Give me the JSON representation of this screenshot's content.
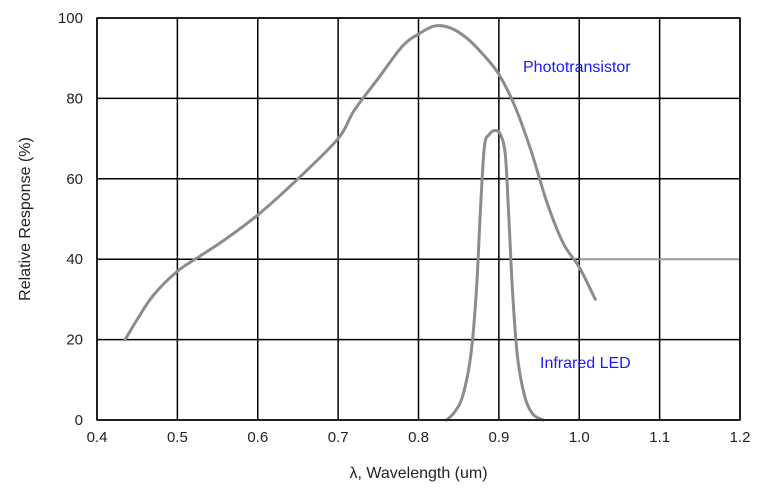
{
  "chart_data": {
    "type": "line",
    "xlabel": "λ, Wavelength (um)",
    "ylabel": "Relative Response (%)",
    "xlim": [
      0.4,
      1.2
    ],
    "ylim": [
      0,
      100
    ],
    "xticks": [
      "0.4",
      "0.5",
      "0.6",
      "0.7",
      "0.8",
      "0.9",
      "1.0",
      "1.1",
      "1.2"
    ],
    "yticks": [
      "0",
      "20",
      "40",
      "60",
      "80",
      "100"
    ],
    "grid": true,
    "series": [
      {
        "name": "Phototransistor",
        "color": "#8c8c8c",
        "points": [
          [
            0.435,
            20
          ],
          [
            0.45,
            25
          ],
          [
            0.47,
            31
          ],
          [
            0.5,
            37
          ],
          [
            0.53,
            41
          ],
          [
            0.56,
            45
          ],
          [
            0.6,
            51
          ],
          [
            0.65,
            60
          ],
          [
            0.7,
            70
          ],
          [
            0.72,
            77
          ],
          [
            0.75,
            85
          ],
          [
            0.78,
            93
          ],
          [
            0.8,
            96
          ],
          [
            0.82,
            98
          ],
          [
            0.84,
            97.5
          ],
          [
            0.86,
            95
          ],
          [
            0.88,
            91
          ],
          [
            0.9,
            86
          ],
          [
            0.92,
            78
          ],
          [
            0.94,
            67
          ],
          [
            0.96,
            54
          ],
          [
            0.98,
            44
          ],
          [
            1.0,
            38
          ],
          [
            1.02,
            30
          ]
        ]
      },
      {
        "name": "Infrared LED",
        "color": "#8c8c8c",
        "points": [
          [
            0.835,
            0
          ],
          [
            0.845,
            2
          ],
          [
            0.855,
            6
          ],
          [
            0.865,
            16
          ],
          [
            0.872,
            32
          ],
          [
            0.877,
            52
          ],
          [
            0.882,
            68
          ],
          [
            0.888,
            71
          ],
          [
            0.895,
            72
          ],
          [
            0.902,
            71
          ],
          [
            0.908,
            66
          ],
          [
            0.912,
            52
          ],
          [
            0.917,
            32
          ],
          [
            0.923,
            16
          ],
          [
            0.932,
            6
          ],
          [
            0.942,
            1.5
          ],
          [
            0.955,
            0
          ]
        ]
      }
    ],
    "reference_line": {
      "y": 40,
      "x_from": 1.0,
      "x_to": 1.2,
      "color": "#9a9a9a"
    },
    "annotations": [
      {
        "text": "Phototransistor",
        "series": "Phototransistor",
        "color": "#1a1aff"
      },
      {
        "text": "Infrared LED",
        "series": "Infrared LED",
        "color": "#1a1aff"
      }
    ]
  }
}
